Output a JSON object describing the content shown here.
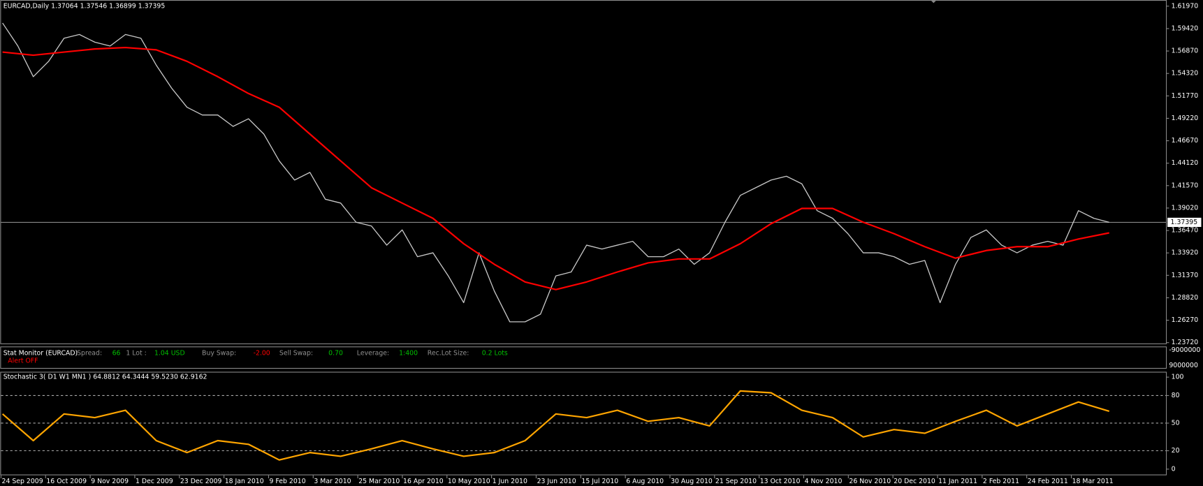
{
  "header": "EURCAD,Daily  1.37064 1.37546 1.36899 1.37395",
  "chart_data": [
    {
      "type": "line",
      "ylim": [
        1.2363,
        1.6267
      ],
      "yticks": [
        {
          "value": 1.6197,
          "label": "1.61970"
        },
        {
          "value": 1.5942,
          "label": "1.59420"
        },
        {
          "value": 1.5687,
          "label": "1.56870"
        },
        {
          "value": 1.5432,
          "label": "1.54320"
        },
        {
          "value": 1.5177,
          "label": "1.51770"
        },
        {
          "value": 1.4922,
          "label": "1.49220"
        },
        {
          "value": 1.4667,
          "label": "1.46670"
        },
        {
          "value": 1.4412,
          "label": "1.44120"
        },
        {
          "value": 1.4157,
          "label": "1.41570"
        },
        {
          "value": 1.3902,
          "label": "1.39020"
        },
        {
          "value": 1.3647,
          "label": "1.36470"
        },
        {
          "value": 1.3392,
          "label": "1.33920"
        },
        {
          "value": 1.3137,
          "label": "1.31370"
        },
        {
          "value": 1.2882,
          "label": "1.28820"
        },
        {
          "value": 1.2627,
          "label": "1.26270"
        },
        {
          "value": 1.2372,
          "label": "1.23720"
        }
      ],
      "current_price": 1.37395,
      "series": [
        {
          "name": "EURCAD",
          "color": "#c8c8c8",
          "values": [
            1.6006,
            1.5744,
            1.5396,
            1.557,
            1.5832,
            1.5875,
            1.5788,
            1.5744,
            1.5875,
            1.5832,
            1.5527,
            1.5265,
            1.5048,
            1.496,
            1.496,
            1.483,
            1.4917,
            1.4743,
            1.4438,
            1.422,
            1.4307,
            1.4002,
            1.3959,
            1.3741,
            1.3698,
            1.348,
            1.3654,
            1.3349,
            1.3393,
            1.3131,
            1.2827,
            1.3393,
            1.2957,
            1.2609,
            1.2609,
            1.2696,
            1.3131,
            1.3175,
            1.348,
            1.3436,
            1.348,
            1.3524,
            1.3349,
            1.3349,
            1.3436,
            1.3262,
            1.3393,
            1.3741,
            1.4046,
            1.4133,
            1.422,
            1.4264,
            1.4177,
            1.3872,
            1.3785,
            1.3611,
            1.3393,
            1.3393,
            1.3349,
            1.3262,
            1.3306,
            1.2827,
            1.3262,
            1.3567,
            1.3654,
            1.348,
            1.3393,
            1.348,
            1.3524,
            1.348,
            1.3872,
            1.3785,
            1.37395
          ]
        },
        {
          "name": "MA",
          "color": "#ff0000",
          "values": [
            1.5675,
            1.564,
            1.5675,
            1.571,
            1.5727,
            1.5701,
            1.557,
            1.5396,
            1.5204,
            1.5048,
            1.4743,
            1.4438,
            1.4133,
            1.3959,
            1.3785,
            1.3497,
            1.3262,
            1.3062,
            1.2975,
            1.3062,
            1.3175,
            1.3279,
            1.3323,
            1.3323,
            1.3497,
            1.3724,
            1.3898,
            1.3898,
            1.3741,
            1.3611,
            1.3463,
            1.3332,
            1.3419,
            1.3463,
            1.3463,
            1.355,
            1.362
          ]
        }
      ]
    },
    {
      "type": "line",
      "title": "Stochastic 3( D1   W1   MN1 ) 64.8812 64.3444 59.5230 62.9162",
      "ylim": [
        0,
        100
      ],
      "yticks": [
        0,
        20,
        50,
        80,
        100
      ],
      "levels": [
        20,
        50,
        80
      ],
      "series": [
        {
          "name": "Stochastic",
          "color": "#ffa500",
          "values": [
            60,
            31,
            60,
            56,
            64,
            31,
            18,
            31,
            27,
            10,
            18,
            14,
            22,
            31,
            22,
            14,
            18,
            31,
            60,
            56,
            64,
            52,
            56,
            47,
            85,
            83,
            64,
            56,
            35,
            43,
            39,
            52,
            64,
            47,
            60,
            73,
            62.9
          ]
        }
      ]
    }
  ],
  "stat_monitor": {
    "title": "Stat Monitor (EURCAD)",
    "alert": "Alert OFF",
    "items": [
      {
        "label": "Spread:",
        "value": "66",
        "color": "#00c000"
      },
      {
        "label": "1 Lot :",
        "value": "1.04 USD",
        "color": "#00c000"
      },
      {
        "label": "Buy Swap:",
        "value": "-2.00",
        "color": "#ff0000"
      },
      {
        "label": "Sell Swap:",
        "value": "0.70",
        "color": "#00c000"
      },
      {
        "label": "Leverage:",
        "value": "1:400",
        "color": "#00c000"
      },
      {
        "label": "Rec.Lot Size:",
        "value": "0.2 Lots",
        "color": "#00c000"
      }
    ],
    "axis_labels": [
      "-9000000",
      "9000000"
    ]
  },
  "time_axis": [
    "24 Sep 2009",
    "16 Oct 2009",
    "9 Nov 2009",
    "1 Dec 2009",
    "23 Dec 2009",
    "18 Jan 2010",
    "9 Feb 2010",
    "3 Mar 2010",
    "25 Mar 2010",
    "16 Apr 2010",
    "10 May 2010",
    "1 Jun 2010",
    "23 Jun 2010",
    "15 Jul 2010",
    "6 Aug 2010",
    "30 Aug 2010",
    "21 Sep 2010",
    "13 Oct 2010",
    "4 Nov 2010",
    "26 Nov 2010",
    "20 Dec 2010",
    "11 Jan 2011",
    "2 Feb 2011",
    "24 Feb 2011",
    "18 Mar 2011"
  ]
}
